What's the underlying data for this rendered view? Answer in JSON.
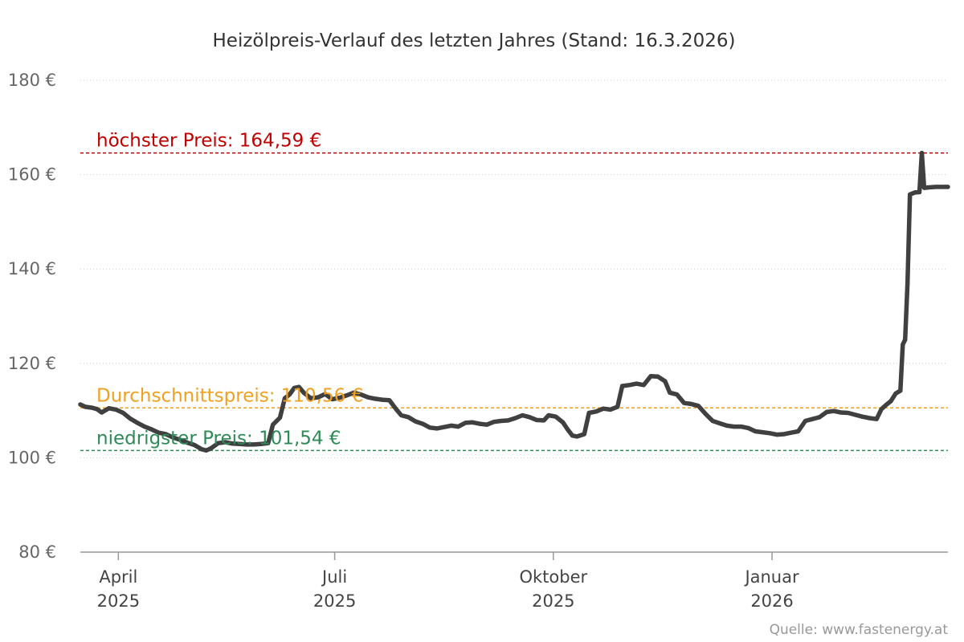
{
  "chart_data": {
    "type": "line",
    "title": "Heizölpreis-Verlauf des letzten Jahres (Stand: 16.3.2026)",
    "ylim": [
      80,
      180
    ],
    "y_ticks": [
      {
        "value": 80,
        "label": "80 €"
      },
      {
        "value": 100,
        "label": "100 €"
      },
      {
        "value": 120,
        "label": "120 €"
      },
      {
        "value": 140,
        "label": "140 €"
      },
      {
        "value": 160,
        "label": "160 €"
      },
      {
        "value": 180,
        "label": "180 €"
      }
    ],
    "xlim": [
      "2025-03-16",
      "2026-03-16"
    ],
    "x_ticks": [
      {
        "date": "2025-04-01",
        "month": "April",
        "year": "2025"
      },
      {
        "date": "2025-07-01",
        "month": "Juli",
        "year": "2025"
      },
      {
        "date": "2025-10-01",
        "month": "Oktober",
        "year": "2025"
      },
      {
        "date": "2026-01-01",
        "month": "Januar",
        "year": "2026"
      }
    ],
    "grid": true,
    "reference_lines": [
      {
        "label": "höchster Preis: 164,59 €",
        "value": 164.59,
        "color": "#c00000"
      },
      {
        "label": "Durchschnittspreis: 110,56 €",
        "value": 110.56,
        "color": "#f0a020"
      },
      {
        "label": "niedrigster Preis: 101,54 €",
        "value": 101.54,
        "color": "#2e8b57"
      }
    ],
    "series": [
      {
        "color": "#404040",
        "points": [
          [
            "2025-03-16",
            111.3
          ],
          [
            "2025-03-18",
            110.8
          ],
          [
            "2025-03-21",
            110.6
          ],
          [
            "2025-03-23",
            110.3
          ],
          [
            "2025-03-25",
            109.6
          ],
          [
            "2025-03-28",
            110.5
          ],
          [
            "2025-03-31",
            110.2
          ],
          [
            "2025-04-03",
            109.5
          ],
          [
            "2025-04-06",
            108.3
          ],
          [
            "2025-04-09",
            107.4
          ],
          [
            "2025-04-12",
            106.6
          ],
          [
            "2025-04-15",
            106.0
          ],
          [
            "2025-04-18",
            105.3
          ],
          [
            "2025-04-21",
            105.0
          ],
          [
            "2025-04-24",
            104.3
          ],
          [
            "2025-04-27",
            103.8
          ],
          [
            "2025-04-30",
            103.2
          ],
          [
            "2025-05-03",
            102.7
          ],
          [
            "2025-05-06",
            101.8
          ],
          [
            "2025-05-08",
            101.54
          ],
          [
            "2025-05-10",
            102.0
          ],
          [
            "2025-05-13",
            103.1
          ],
          [
            "2025-05-16",
            103.3
          ],
          [
            "2025-05-19",
            103.0
          ],
          [
            "2025-05-22",
            102.9
          ],
          [
            "2025-05-25",
            102.8
          ],
          [
            "2025-05-28",
            102.8
          ],
          [
            "2025-05-31",
            102.9
          ],
          [
            "2025-06-03",
            103.1
          ],
          [
            "2025-06-05",
            107.0
          ],
          [
            "2025-06-08",
            108.5
          ],
          [
            "2025-06-10",
            112.6
          ],
          [
            "2025-06-12",
            113.4
          ],
          [
            "2025-06-14",
            114.8
          ],
          [
            "2025-06-16",
            115.0
          ],
          [
            "2025-06-18",
            113.8
          ],
          [
            "2025-06-21",
            112.6
          ],
          [
            "2025-06-24",
            112.8
          ],
          [
            "2025-06-27",
            113.5
          ],
          [
            "2025-06-30",
            112.4
          ],
          [
            "2025-07-03",
            112.7
          ],
          [
            "2025-07-06",
            113.2
          ],
          [
            "2025-07-09",
            113.8
          ],
          [
            "2025-07-12",
            113.4
          ],
          [
            "2025-07-15",
            112.8
          ],
          [
            "2025-07-18",
            112.5
          ],
          [
            "2025-07-21",
            112.3
          ],
          [
            "2025-07-24",
            112.2
          ],
          [
            "2025-07-27",
            110.2
          ],
          [
            "2025-07-29",
            109.0
          ],
          [
            "2025-08-01",
            108.6
          ],
          [
            "2025-08-04",
            107.7
          ],
          [
            "2025-08-07",
            107.2
          ],
          [
            "2025-08-10",
            106.4
          ],
          [
            "2025-08-13",
            106.2
          ],
          [
            "2025-08-16",
            106.5
          ],
          [
            "2025-08-19",
            106.8
          ],
          [
            "2025-08-22",
            106.6
          ],
          [
            "2025-08-25",
            107.4
          ],
          [
            "2025-08-28",
            107.5
          ],
          [
            "2025-08-31",
            107.2
          ],
          [
            "2025-09-03",
            107.0
          ],
          [
            "2025-09-06",
            107.6
          ],
          [
            "2025-09-09",
            107.8
          ],
          [
            "2025-09-12",
            107.9
          ],
          [
            "2025-09-15",
            108.4
          ],
          [
            "2025-09-18",
            109.0
          ],
          [
            "2025-09-21",
            108.6
          ],
          [
            "2025-09-24",
            108.0
          ],
          [
            "2025-09-27",
            107.9
          ],
          [
            "2025-09-29",
            109.0
          ],
          [
            "2025-10-02",
            108.7
          ],
          [
            "2025-10-05",
            107.5
          ],
          [
            "2025-10-07",
            106.0
          ],
          [
            "2025-10-09",
            104.7
          ],
          [
            "2025-10-11",
            104.5
          ],
          [
            "2025-10-14",
            105.0
          ],
          [
            "2025-10-16",
            109.5
          ],
          [
            "2025-10-19",
            109.8
          ],
          [
            "2025-10-22",
            110.4
          ],
          [
            "2025-10-25",
            110.2
          ],
          [
            "2025-10-28",
            110.8
          ],
          [
            "2025-10-30",
            115.2
          ],
          [
            "2025-11-02",
            115.4
          ],
          [
            "2025-11-05",
            115.7
          ],
          [
            "2025-11-08",
            115.4
          ],
          [
            "2025-11-11",
            117.3
          ],
          [
            "2025-11-14",
            117.2
          ],
          [
            "2025-11-17",
            116.2
          ],
          [
            "2025-11-19",
            113.8
          ],
          [
            "2025-11-22",
            113.4
          ],
          [
            "2025-11-25",
            111.6
          ],
          [
            "2025-11-28",
            111.4
          ],
          [
            "2025-12-01",
            111.0
          ],
          [
            "2025-12-04",
            109.3
          ],
          [
            "2025-12-07",
            107.8
          ],
          [
            "2025-12-10",
            107.3
          ],
          [
            "2025-12-13",
            106.8
          ],
          [
            "2025-12-16",
            106.6
          ],
          [
            "2025-12-19",
            106.6
          ],
          [
            "2025-12-22",
            106.3
          ],
          [
            "2025-12-25",
            105.6
          ],
          [
            "2025-12-28",
            105.4
          ],
          [
            "2025-12-31",
            105.2
          ],
          [
            "2026-01-03",
            104.9
          ],
          [
            "2026-01-06",
            105.0
          ],
          [
            "2026-01-09",
            105.3
          ],
          [
            "2026-01-12",
            105.6
          ],
          [
            "2026-01-15",
            107.8
          ],
          [
            "2026-01-18",
            108.2
          ],
          [
            "2026-01-21",
            108.6
          ],
          [
            "2026-01-24",
            109.7
          ],
          [
            "2026-01-27",
            109.9
          ],
          [
            "2026-01-30",
            109.6
          ],
          [
            "2026-02-02",
            109.5
          ],
          [
            "2026-02-05",
            109.1
          ],
          [
            "2026-02-08",
            108.7
          ],
          [
            "2026-02-11",
            108.4
          ],
          [
            "2026-02-14",
            108.2
          ],
          [
            "2026-02-16",
            110.3
          ],
          [
            "2026-02-18",
            111.2
          ],
          [
            "2026-02-20",
            112.0
          ],
          [
            "2026-02-22",
            113.6
          ],
          [
            "2026-02-24",
            114.2
          ],
          [
            "2026-02-25",
            124.0
          ],
          [
            "2026-02-26",
            125.0
          ],
          [
            "2026-02-27",
            137.0
          ],
          [
            "2026-02-28",
            155.8
          ],
          [
            "2026-03-02",
            156.2
          ],
          [
            "2026-03-04",
            156.3
          ],
          [
            "2026-03-05",
            164.59
          ],
          [
            "2026-03-06",
            157.2
          ],
          [
            "2026-03-08",
            157.3
          ],
          [
            "2026-03-11",
            157.4
          ],
          [
            "2026-03-16",
            157.4
          ]
        ]
      }
    ]
  },
  "source": "Quelle: www.fastenergy.at"
}
